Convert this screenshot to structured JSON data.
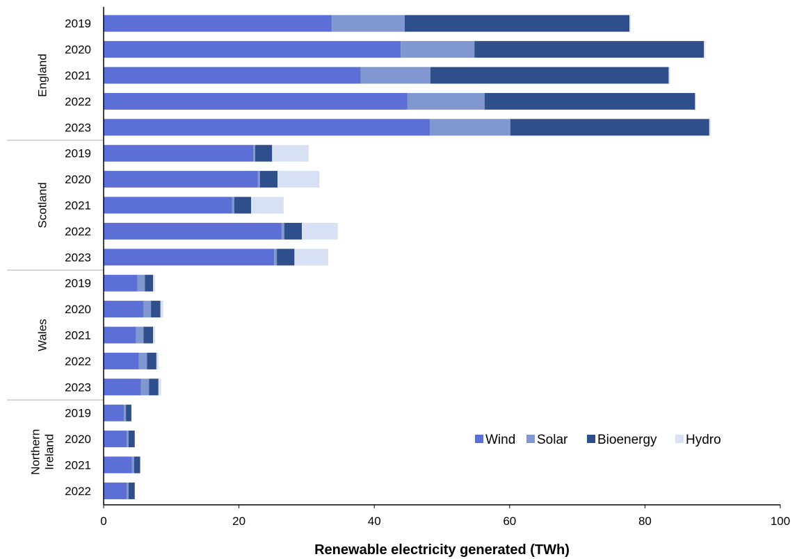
{
  "chart_data": {
    "type": "bar",
    "orientation": "horizontal",
    "stacked": true,
    "title": "",
    "xlabel": "Renewable electricity generated (TWh)",
    "ylabel": "",
    "xlim": [
      0,
      100
    ],
    "xticks": [
      0,
      20,
      40,
      60,
      80,
      100
    ],
    "grid": false,
    "legend_position": "bottom-right",
    "groups": [
      {
        "name": "England",
        "name_lines": [
          "England"
        ],
        "categories": [
          "2019",
          "2020",
          "2021",
          "2022",
          "2023"
        ]
      },
      {
        "name": "Scotland",
        "name_lines": [
          "Scotland"
        ],
        "categories": [
          "2019",
          "2020",
          "2021",
          "2022",
          "2023"
        ]
      },
      {
        "name": "Wales",
        "name_lines": [
          "Wales"
        ],
        "categories": [
          "2019",
          "2020",
          "2021",
          "2022",
          "2023"
        ]
      },
      {
        "name": "Northern Ireland",
        "name_lines": [
          "Northern",
          "Ireland"
        ],
        "categories": [
          "2019",
          "2020",
          "2021",
          "2022"
        ]
      }
    ],
    "series": [
      {
        "name": "Wind",
        "color": "#5b6fd6",
        "values": [
          33.7,
          43.9,
          38.0,
          44.9,
          48.2,
          22.1,
          22.8,
          19.0,
          26.3,
          25.2,
          5.0,
          5.9,
          4.8,
          5.2,
          5.5,
          3.0,
          3.4,
          4.2,
          3.4
        ]
      },
      {
        "name": "Solar",
        "color": "#8197d2",
        "values": [
          10.8,
          10.9,
          10.3,
          11.4,
          11.9,
          0.3,
          0.3,
          0.3,
          0.4,
          0.4,
          1.1,
          1.1,
          1.1,
          1.2,
          1.2,
          0.3,
          0.3,
          0.3,
          0.3
        ]
      },
      {
        "name": "Bioenergy",
        "color": "#2f4f8c",
        "values": [
          33.2,
          33.9,
          35.2,
          31.1,
          29.4,
          2.5,
          2.6,
          2.5,
          2.6,
          2.6,
          1.2,
          1.4,
          1.4,
          1.4,
          1.4,
          0.8,
          0.9,
          0.9,
          0.9
        ]
      },
      {
        "name": "Hydro",
        "color": "#d8e0f3",
        "values": [
          0.2,
          0.2,
          0.2,
          0.1,
          0.2,
          5.4,
          6.2,
          4.8,
          5.3,
          5.0,
          0.3,
          0.4,
          0.3,
          0.3,
          0.4,
          0.0,
          0.0,
          0.0,
          0.0
        ]
      }
    ]
  }
}
